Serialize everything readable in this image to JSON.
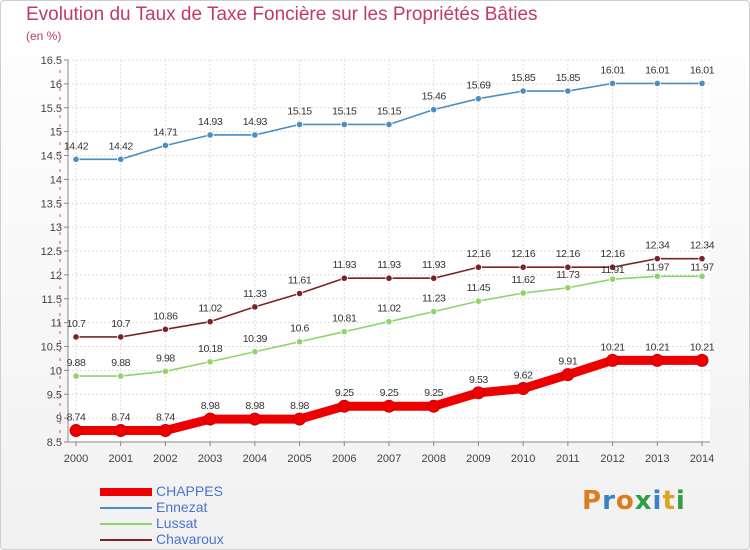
{
  "title": "Evolution du Taux de Taxe Foncière sur les Propriétés Bâties",
  "subtitle": "(en %)",
  "logo": {
    "text": "Proxiti",
    "letters": [
      "P",
      "r",
      "o",
      "x",
      "i",
      "t",
      "i"
    ],
    "colors": [
      "#e07a1f",
      "#3b82c4",
      "#e07a1f",
      "#2f9e44",
      "#3b82c4",
      "#e0a21f",
      "#2f9e44"
    ]
  },
  "chart_data": {
    "type": "line",
    "title": "Evolution du Taux de Taxe Foncière sur les Propriétés Bâties",
    "ylabel": "(en %)",
    "xlabel": "",
    "x": [
      2000,
      2001,
      2002,
      2003,
      2004,
      2005,
      2006,
      2007,
      2008,
      2009,
      2010,
      2011,
      2012,
      2013,
      2014
    ],
    "ylim": [
      8.5,
      16.5
    ],
    "yticks": [
      "8.5",
      "9",
      "9.5",
      "10",
      "10.5",
      "11",
      "11.5",
      "12",
      "12.5",
      "13",
      "13.5",
      "14",
      "14.5",
      "15",
      "15.5",
      "16",
      "16.5"
    ],
    "grid": true,
    "legend_position": "bottom-left",
    "series": [
      {
        "name": "CHAPPES",
        "color": "#ee0000",
        "values": [
          8.74,
          8.74,
          8.74,
          8.98,
          8.98,
          8.98,
          9.25,
          9.25,
          9.25,
          9.53,
          9.62,
          9.91,
          10.21,
          10.21,
          10.21
        ],
        "labels": [
          "8.74",
          "8.74",
          "8.74",
          "8.98",
          "8.98",
          "8.98",
          "9.25",
          "9.25",
          "9.25",
          "9.53",
          "9.62",
          "9.91",
          "10.21",
          "10.21",
          "10.21"
        ]
      },
      {
        "name": "Ennezat",
        "color": "#4a8ec4",
        "values": [
          14.42,
          14.42,
          14.71,
          14.93,
          14.93,
          15.15,
          15.15,
          15.15,
          15.46,
          15.69,
          15.85,
          15.85,
          16.01,
          16.01,
          16.01
        ],
        "labels": [
          "14.42",
          "14.42",
          "14.71",
          "14.93",
          "14.93",
          "15.15",
          "15.15",
          "15.15",
          "15.46",
          "15.69",
          "15.85",
          "15.85",
          "16.01",
          "16.01",
          "16.01"
        ]
      },
      {
        "name": "Lussat",
        "color": "#8ed46a",
        "values": [
          9.88,
          9.88,
          9.98,
          10.18,
          10.39,
          10.6,
          10.81,
          11.02,
          11.23,
          11.45,
          11.62,
          11.73,
          11.91,
          11.97,
          11.97
        ],
        "labels": [
          "9.88",
          "9.88",
          "9.98",
          "10.18",
          "10.39",
          "10.6",
          "10.81",
          "11.02",
          "11.23",
          "11.45",
          "11.62",
          "11.73",
          "11.91",
          "11.97",
          "11.97"
        ]
      },
      {
        "name": "Chavaroux",
        "color": "#7a2323",
        "values": [
          10.7,
          10.7,
          10.86,
          11.02,
          11.33,
          11.61,
          11.93,
          11.93,
          11.93,
          12.16,
          12.16,
          12.16,
          12.16,
          12.34,
          12.34
        ],
        "labels": [
          "10.7",
          "10.7",
          "10.86",
          "11.02",
          "11.33",
          "11.61",
          "11.93",
          "11.93",
          "11.93",
          "12.16",
          "12.16",
          "12.16",
          "12.16",
          "12.34",
          "12.34"
        ]
      }
    ]
  }
}
